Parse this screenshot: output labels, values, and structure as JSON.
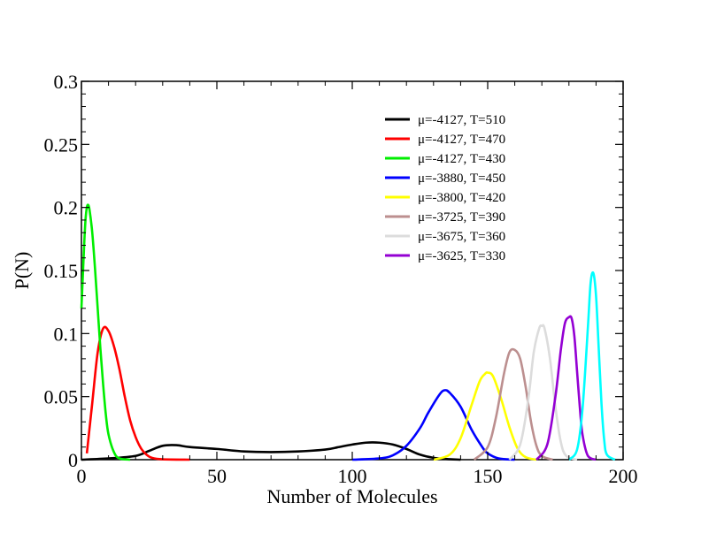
{
  "chart_data": {
    "type": "line",
    "title": "",
    "xlabel": "Number of Molecules",
    "ylabel": "P(N)",
    "xlim": [
      0,
      200
    ],
    "ylim": [
      0,
      0.3
    ],
    "xticks": [
      0,
      50,
      100,
      150,
      200
    ],
    "yticks": [
      0,
      0.05,
      0.1,
      0.15,
      0.2,
      0.25,
      0.3
    ],
    "ytick_labels": [
      "0",
      "0.05",
      "0.1",
      "0.15",
      "0.2",
      "0.25",
      "0.3"
    ],
    "grid": false,
    "legend_placement": "top-right",
    "series": [
      {
        "name": "μ=-4127, T=510",
        "color": "#000000",
        "x": [
          0,
          10,
          20,
          25,
          30,
          35,
          40,
          50,
          60,
          70,
          80,
          90,
          95,
          100,
          105,
          110,
          115,
          120,
          125,
          130,
          135,
          140
        ],
        "y": [
          0,
          0.001,
          0.003,
          0.007,
          0.011,
          0.0115,
          0.01,
          0.0085,
          0.0065,
          0.006,
          0.0065,
          0.008,
          0.01,
          0.012,
          0.0135,
          0.0135,
          0.012,
          0.0085,
          0.004,
          0.0015,
          0.0005,
          0
        ]
      },
      {
        "name": "μ=-4127, T=470",
        "color": "#ff0000",
        "x": [
          2,
          4,
          6,
          8,
          10,
          12,
          14,
          16,
          18,
          20,
          22,
          24,
          26,
          30,
          40
        ],
        "y": [
          0.005,
          0.045,
          0.085,
          0.104,
          0.102,
          0.09,
          0.072,
          0.05,
          0.031,
          0.018,
          0.009,
          0.004,
          0.0015,
          0.0003,
          0
        ]
      },
      {
        "name": "μ=-4127, T=430",
        "color": "#00ee00",
        "x": [
          0,
          0.5,
          1,
          1.5,
          2,
          2.5,
          3,
          4,
          5,
          6,
          7,
          8,
          9,
          10,
          12,
          14,
          18
        ],
        "y": [
          0.12,
          0.145,
          0.17,
          0.19,
          0.2,
          0.202,
          0.198,
          0.18,
          0.152,
          0.12,
          0.088,
          0.06,
          0.036,
          0.02,
          0.006,
          0.001,
          0
        ]
      },
      {
        "name": "μ=-3880, T=450",
        "color": "#0000ff",
        "x": [
          100,
          110,
          115,
          120,
          125,
          128,
          132,
          134,
          136,
          140,
          144,
          148,
          150,
          154,
          160
        ],
        "y": [
          0,
          0.001,
          0.0035,
          0.011,
          0.025,
          0.037,
          0.051,
          0.055,
          0.053,
          0.042,
          0.024,
          0.01,
          0.005,
          0.001,
          0
        ]
      },
      {
        "name": "μ=-3800, T=420",
        "color": "#ffff00",
        "x": [
          130,
          136,
          140,
          144,
          147,
          149,
          150,
          152,
          155,
          158,
          161,
          164,
          168
        ],
        "y": [
          0,
          0.004,
          0.017,
          0.043,
          0.062,
          0.068,
          0.069,
          0.066,
          0.048,
          0.026,
          0.009,
          0.002,
          0
        ]
      },
      {
        "name": "μ=-3725, T=390",
        "color": "#bc8f8f",
        "x": [
          145,
          150,
          153,
          156,
          158,
          160,
          162,
          164,
          166,
          168,
          170,
          174
        ],
        "y": [
          0,
          0.01,
          0.033,
          0.068,
          0.085,
          0.087,
          0.08,
          0.058,
          0.03,
          0.011,
          0.003,
          0
        ]
      },
      {
        "name": "μ=-3675, T=360",
        "color": "#dcdcdc",
        "x": [
          158,
          162,
          165,
          167,
          169,
          170,
          171,
          173,
          175,
          177,
          179,
          183
        ],
        "y": [
          0,
          0.012,
          0.048,
          0.085,
          0.104,
          0.106,
          0.104,
          0.08,
          0.042,
          0.014,
          0.003,
          0
        ]
      },
      {
        "name": "μ=-3625, T=330",
        "color": "#9400d3",
        "x": [
          168,
          172,
          175,
          177,
          178.5,
          180,
          181,
          182,
          183,
          184,
          185,
          187,
          190
        ],
        "y": [
          0,
          0.012,
          0.05,
          0.087,
          0.108,
          0.113,
          0.112,
          0.098,
          0.07,
          0.042,
          0.02,
          0.003,
          0
        ]
      },
      {
        "name": "",
        "color": "#00ffff",
        "x": [
          180,
          183,
          185,
          187,
          188,
          189,
          190,
          191,
          192,
          193,
          194,
          197
        ],
        "y": [
          0,
          0.008,
          0.04,
          0.105,
          0.14,
          0.148,
          0.13,
          0.088,
          0.045,
          0.016,
          0.004,
          0
        ]
      }
    ]
  }
}
